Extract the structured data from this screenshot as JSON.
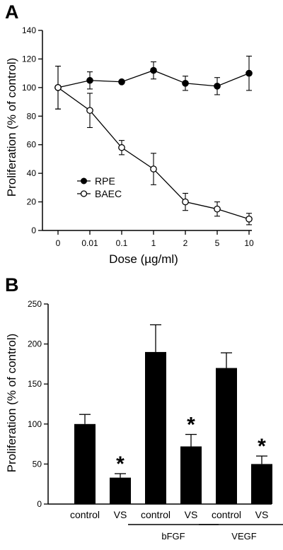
{
  "chart_data": [
    {
      "panel": "A",
      "type": "line",
      "xlabel": "Dose (µg/ml)",
      "ylabel": "Proliferation (% of control)",
      "x": [
        "0",
        "0.01",
        "0.1",
        "1",
        "2",
        "5",
        "10"
      ],
      "yticks": [
        "0",
        "20",
        "40",
        "60",
        "80",
        "100",
        "120",
        "140"
      ],
      "ylim": [
        0,
        140
      ],
      "legend_position": "lower-left",
      "series": [
        {
          "name": "RPE",
          "marker": "filled-circle",
          "values": [
            100,
            105,
            104,
            112,
            103,
            101,
            110
          ],
          "errors": [
            15,
            6,
            0,
            6,
            5,
            6,
            12
          ]
        },
        {
          "name": "BAEC",
          "marker": "open-circle",
          "values": [
            100,
            84,
            58,
            43,
            20,
            15,
            8
          ],
          "errors": [
            15,
            12,
            5,
            11,
            6,
            5,
            4
          ]
        }
      ]
    },
    {
      "panel": "B",
      "type": "bar",
      "ylabel": "Proliferation (% of control)",
      "categories": [
        "control",
        "VS",
        "control",
        "VS",
        "control",
        "VS"
      ],
      "values": [
        100,
        33,
        190,
        72,
        170,
        50
      ],
      "errors": [
        12,
        5,
        34,
        15,
        19,
        10
      ],
      "significant": [
        false,
        true,
        false,
        true,
        false,
        true
      ],
      "significance_marker": "*",
      "groups": [
        {
          "label": "bFGF",
          "categories": [
            2,
            3
          ]
        },
        {
          "label": "VEGF",
          "categories": [
            4,
            5
          ]
        }
      ],
      "yticks": [
        "0",
        "50",
        "100",
        "150",
        "200",
        "250"
      ],
      "ylim": [
        0,
        250
      ],
      "bar_color": "#000000"
    }
  ]
}
